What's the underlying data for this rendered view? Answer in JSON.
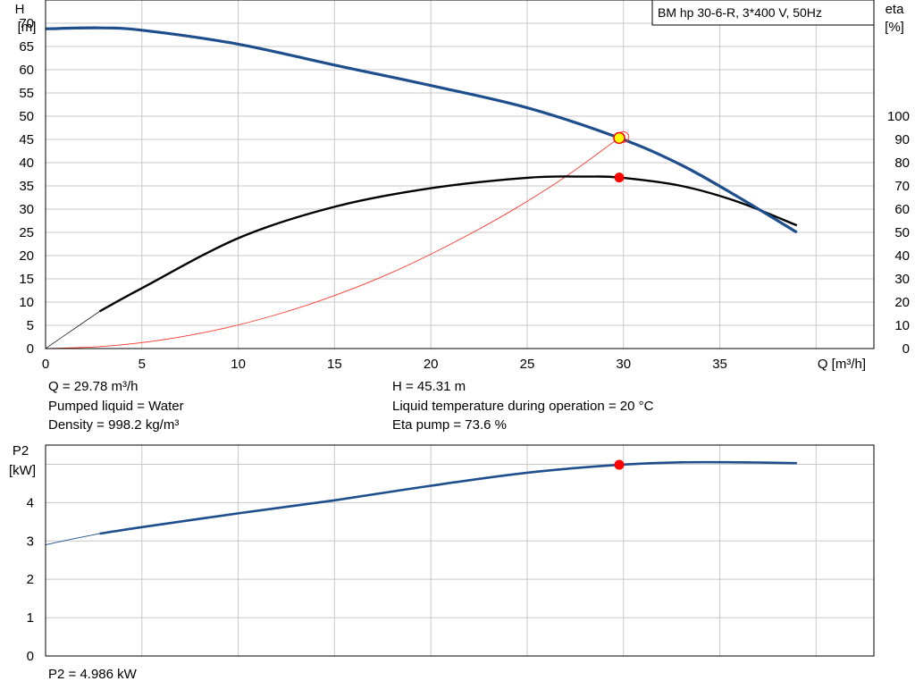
{
  "model_label": "BM hp 30-6-R, 3*400 V, 50Hz",
  "info": {
    "q": "Q = 29.78 m³/h",
    "liquid": "Pumped liquid = Water",
    "density": "Density = 998.2 kg/m³",
    "h": "H = 45.31 m",
    "temp": "Liquid temperature during operation = 20 °C",
    "eta": "Eta pump = 73.6 %",
    "p2": "P2 = 4.986 kW"
  },
  "colors": {
    "head_curve": "#1f4e8c",
    "eta_curve": "#000000",
    "system_curve": "#ff3b30",
    "operating_point": "#ff0000",
    "head_point_fill": "#ffff00",
    "grid": "#c8c8c8"
  },
  "chart_data": [
    {
      "type": "line",
      "name": "head-eta",
      "xlabel": "Q [m³/h]",
      "ylabel": "H",
      "ylabel_unit": "[m]",
      "y2label": "eta",
      "y2label_unit": "[%]",
      "xlim": [
        0,
        43
      ],
      "ylim": [
        0,
        75
      ],
      "y2lim": [
        0,
        150
      ],
      "xticks": [
        0,
        5,
        10,
        15,
        20,
        25,
        30,
        35
      ],
      "yticks": [
        0,
        5,
        10,
        15,
        20,
        25,
        30,
        35,
        40,
        45,
        50,
        55,
        60,
        65,
        70
      ],
      "y2ticks": [
        0,
        10,
        20,
        30,
        40,
        50,
        60,
        70,
        80,
        90,
        100
      ],
      "grid": true,
      "series": [
        {
          "key": "head",
          "axis": "y",
          "x": [
            0,
            2.8,
            5,
            10,
            15,
            20,
            25,
            29.78,
            33,
            36,
            39
          ],
          "y": [
            68.8,
            69,
            68.5,
            65.5,
            61,
            56.6,
            51.8,
            45.31,
            39.5,
            32.5,
            25
          ]
        },
        {
          "key": "head_extension",
          "axis": "y",
          "x": [
            0,
            1,
            2.8
          ],
          "y": [
            68.8,
            69,
            69
          ]
        },
        {
          "key": "eta",
          "axis": "y2",
          "x": [
            2.8,
            5,
            10,
            15,
            20,
            25,
            28,
            29.78,
            33,
            36,
            39
          ],
          "y": [
            16,
            26,
            47.5,
            61,
            69,
            73.5,
            74,
            73.6,
            70,
            63,
            53
          ]
        },
        {
          "key": "eta_extension",
          "axis": "y2",
          "x": [
            0,
            1.4,
            2.8
          ],
          "y": [
            0,
            8,
            16
          ]
        },
        {
          "key": "system",
          "axis": "y",
          "x": [
            0,
            3,
            6,
            9,
            12,
            15,
            18,
            21,
            24,
            27,
            29.78,
            30
          ],
          "y": [
            0,
            0.46,
            1.83,
            4.11,
            7.31,
            11.4,
            16.4,
            22.4,
            29.2,
            37,
            45.31,
            45.5
          ]
        }
      ],
      "operating_point": {
        "x": 29.78,
        "h": 45.31,
        "eta": 73.6
      }
    },
    {
      "type": "line",
      "name": "power",
      "ylabel": "P2",
      "ylabel_unit": "[kW]",
      "xlim": [
        0,
        43
      ],
      "ylim": [
        0,
        5.5
      ],
      "yticks": [
        0,
        1,
        2,
        3,
        4
      ],
      "grid": true,
      "series": [
        {
          "key": "power",
          "axis": "y",
          "x": [
            2.8,
            5,
            10,
            15,
            20,
            25,
            29.78,
            33,
            36,
            39
          ],
          "y": [
            3.19,
            3.36,
            3.72,
            4.06,
            4.44,
            4.78,
            4.986,
            5.05,
            5.05,
            5.03
          ]
        },
        {
          "key": "power_extension",
          "axis": "y",
          "x": [
            0,
            1.4,
            2.8
          ],
          "y": [
            2.9,
            3.05,
            3.19
          ]
        }
      ],
      "operating_point": {
        "x": 29.78,
        "p2": 4.986
      }
    }
  ]
}
